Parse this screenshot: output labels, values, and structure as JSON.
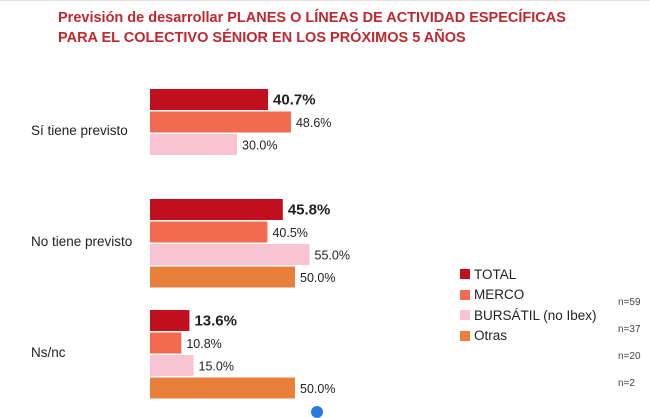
{
  "title_line1": "Previsión de desarrollar PLANES O LÍNEAS DE ACTIVIDAD ESPECÍFICAS",
  "title_line2": "PARA EL COLECTIVO SÉNIOR EN LOS PRÓXIMOS 5 AÑOS",
  "chart_data": {
    "type": "bar",
    "orientation": "horizontal",
    "title": "Previsión de desarrollar PLANES O LÍNEAS DE ACTIVIDAD ESPECÍFICAS PARA EL COLECTIVO SÉNIOR EN LOS PRÓXIMOS 5 AÑOS",
    "categories": [
      "Sí tiene previsto",
      "No tiene previsto",
      "Ns/nc"
    ],
    "unit": "%",
    "series": [
      {
        "name": "TOTAL",
        "color": "#c00f1e",
        "values": [
          40.7,
          45.8,
          13.6
        ],
        "labels": [
          "40.7%",
          "45.8%",
          "13.6%"
        ],
        "emphasis": true
      },
      {
        "name": "MERCO",
        "color": "#f26a4f",
        "values": [
          48.6,
          40.5,
          10.8
        ],
        "labels": [
          "48.6%",
          "40.5%",
          "10.8%"
        ]
      },
      {
        "name": "BURSÁTIL (no Ibex)",
        "color": "#f8c4d4",
        "values": [
          30.0,
          55.0,
          15.0
        ],
        "labels": [
          "30.0%",
          "55.0%",
          "15.0%"
        ]
      },
      {
        "name": "Otras",
        "color": "#e8803c",
        "values": [
          null,
          50.0,
          50.0
        ],
        "labels": [
          "",
          "50.0%",
          "50.0%"
        ]
      }
    ],
    "legend_position": "right",
    "grid": false
  },
  "legend": [
    {
      "label": "TOTAL",
      "color": "#c00f1e"
    },
    {
      "label": "MERCO",
      "color": "#f26a4f"
    },
    {
      "label": "BURSÁTIL (no Ibex)",
      "color": "#f8c4d4"
    },
    {
      "label": "Otras",
      "color": "#e8803c"
    }
  ],
  "sample_sizes": [
    "n=59",
    "n=37",
    "n=20",
    "n=2"
  ]
}
